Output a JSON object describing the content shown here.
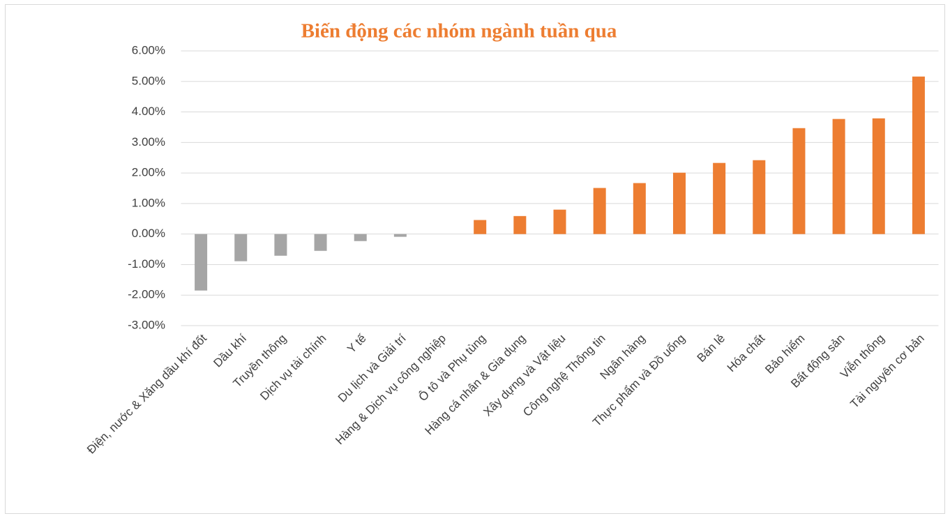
{
  "chart_data": {
    "type": "bar",
    "title": "Biến động các nhóm ngành tuần qua",
    "categories": [
      "Điện, nước & Xăng dầu khí đốt",
      "Dầu khí",
      "Truyền thông",
      "Dịch vụ tài chính",
      "Y tế",
      "Du lịch và Giải trí",
      "Hàng & Dịch vụ công nghiệp",
      "Ô tô và Phụ tùng",
      "Hàng cá nhân & Gia dụng",
      "Xây dựng và Vật liệu",
      "Công nghệ Thông tin",
      "Ngân hàng",
      "Thực phẩm và Đồ uống",
      "Bán lẻ",
      "Hóa chất",
      "Bảo hiểm",
      "Bất động sản",
      "Viễn thông",
      "Tài nguyên cơ bản"
    ],
    "values": [
      -1.85,
      -0.89,
      -0.71,
      -0.55,
      -0.23,
      -0.09,
      0,
      0.46,
      0.59,
      0.8,
      1.51,
      1.67,
      2.01,
      2.33,
      2.42,
      3.47,
      3.77,
      3.79,
      5.16
    ],
    "colors": [
      "#a5a5a5",
      "#a5a5a5",
      "#a5a5a5",
      "#a5a5a5",
      "#a5a5a5",
      "#a5a5a5",
      "#a5a5a5",
      "#ed7d31",
      "#ed7d31",
      "#ed7d31",
      "#ed7d31",
      "#ed7d31",
      "#ed7d31",
      "#ed7d31",
      "#ed7d31",
      "#ed7d31",
      "#ed7d31",
      "#ed7d31",
      "#ed7d31"
    ],
    "ylim": [
      -3,
      6
    ],
    "yticks": [
      {
        "value": -3,
        "label": "-3.00%"
      },
      {
        "value": -2,
        "label": "-2.00%"
      },
      {
        "value": -1,
        "label": "-1.00%"
      },
      {
        "value": 0,
        "label": "0.00%"
      },
      {
        "value": 1,
        "label": "1.00%"
      },
      {
        "value": 2,
        "label": "2.00%"
      },
      {
        "value": 3,
        "label": "3.00%"
      },
      {
        "value": 4,
        "label": "4.00%"
      },
      {
        "value": 5,
        "label": "5.00%"
      },
      {
        "value": 6,
        "label": "6.00%"
      }
    ],
    "grid": true
  }
}
